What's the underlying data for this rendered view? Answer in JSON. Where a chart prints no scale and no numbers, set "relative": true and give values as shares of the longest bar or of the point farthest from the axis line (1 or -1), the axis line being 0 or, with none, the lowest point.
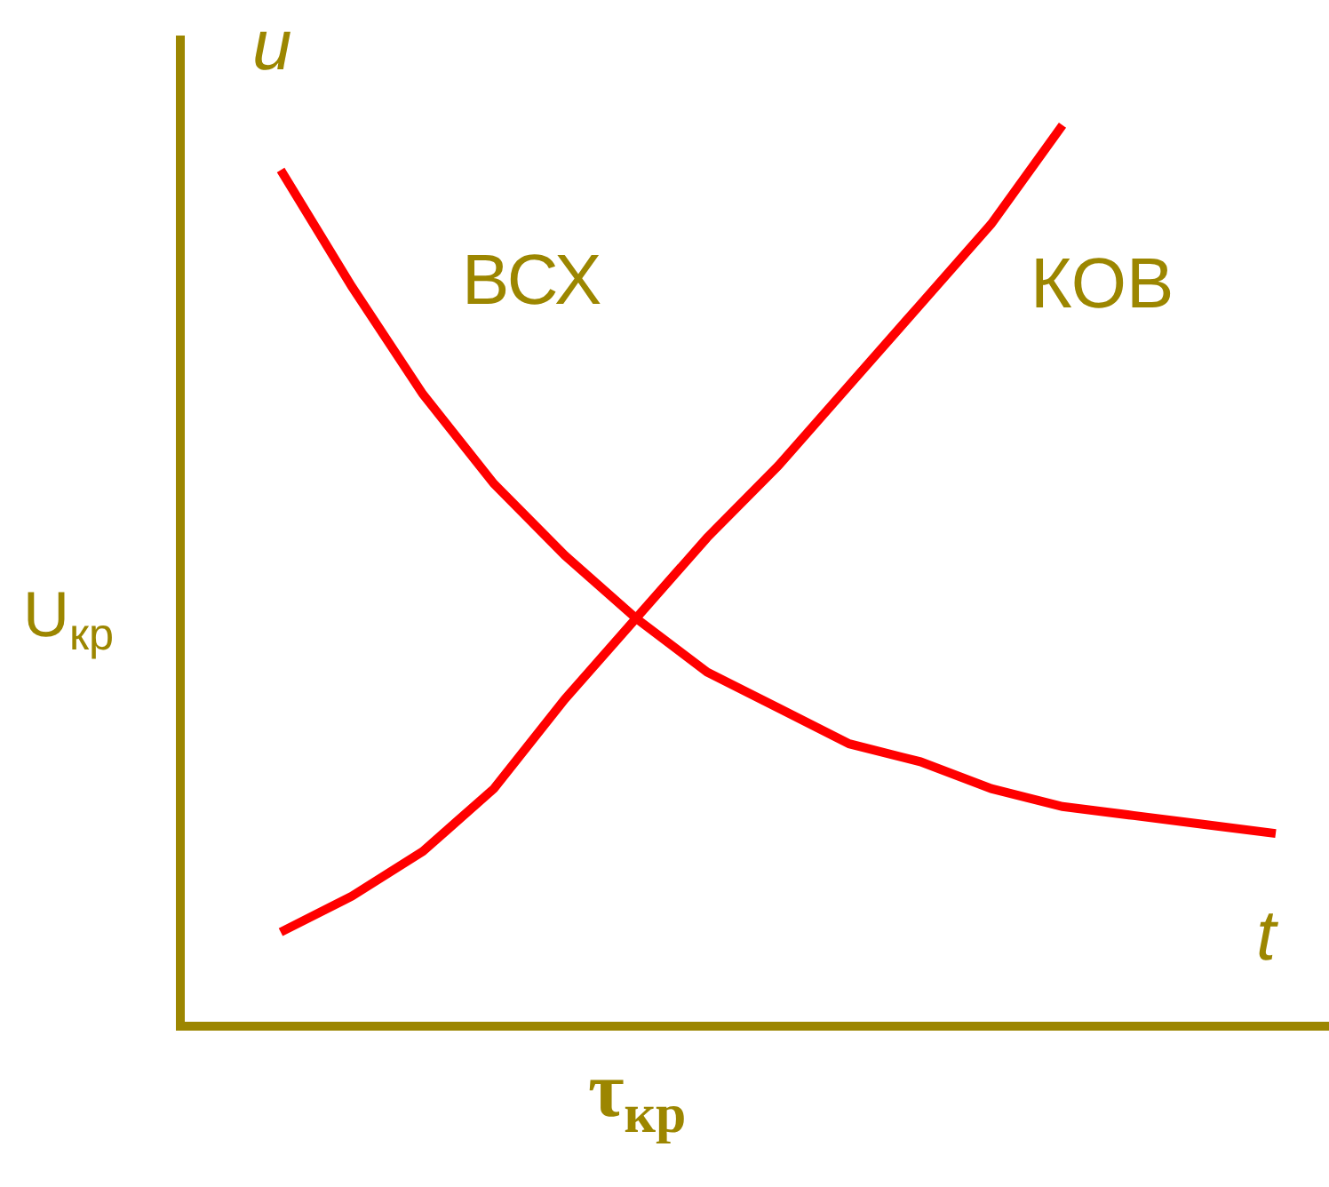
{
  "chart_data": {
    "type": "line",
    "relative": true,
    "xlabel": "t",
    "ylabel": "u",
    "categories": [
      null,
      null,
      null,
      null,
      null,
      null,
      null,
      null,
      null,
      null,
      null,
      null,
      null,
      null,
      null
    ],
    "series": [
      {
        "name": "ВСХ",
        "color": "#ff0000",
        "values": [
          0.95,
          0.82,
          0.7,
          0.6,
          0.52,
          0.45,
          0.39,
          0.35,
          0.31,
          0.29,
          0.26,
          0.24,
          0.23,
          0.22,
          0.21
        ]
      },
      {
        "name": "КОВ",
        "color": "#ff0000",
        "values": [
          0.1,
          0.14,
          0.19,
          0.26,
          0.36,
          0.45,
          0.54,
          0.62,
          0.71,
          0.8,
          0.89,
          1.0,
          null,
          null,
          null
        ]
      }
    ],
    "annotations": [
      "U$_{кр}$",
      "τ$_{кр}$"
    ],
    "grid": false,
    "legend": false,
    "marker": "none",
    "line_style": "solid"
  }
}
